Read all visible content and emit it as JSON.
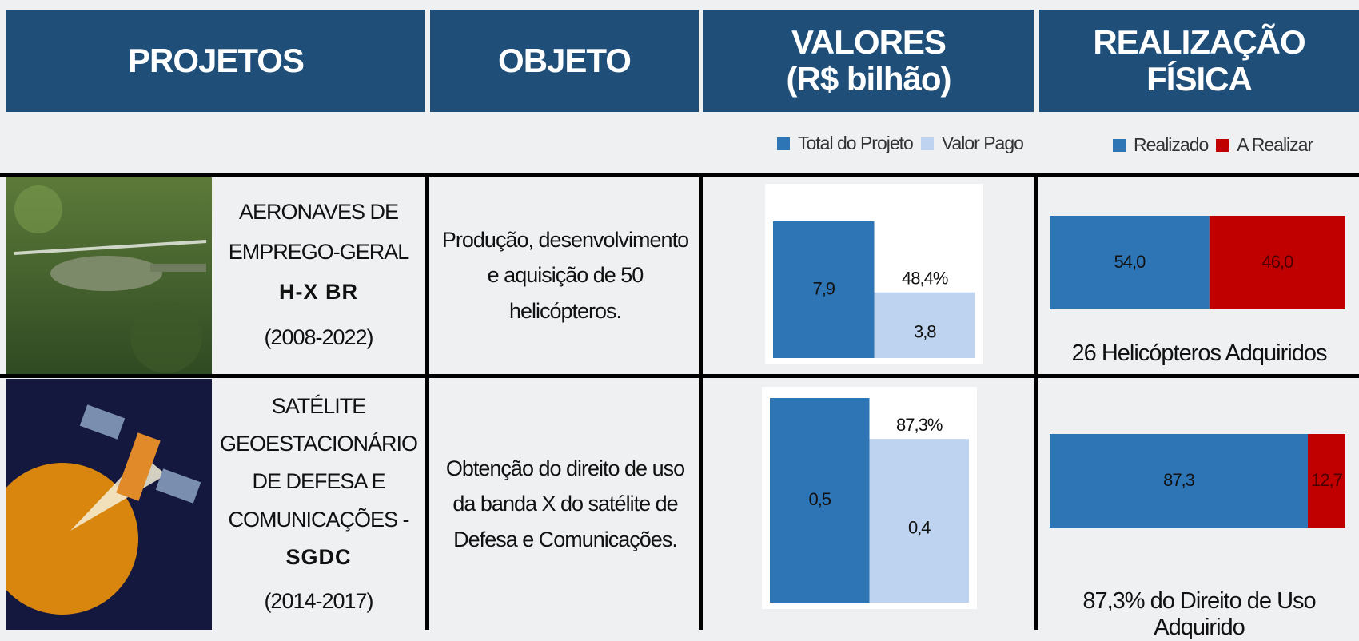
{
  "header": {
    "columns": [
      [
        "PROJETOS"
      ],
      [
        "OBJETO"
      ],
      [
        "VALORES",
        "(R$ bilhão)"
      ],
      [
        "REALIZAÇÃO FÍSICA"
      ]
    ]
  },
  "legends": {
    "valores": {
      "names": [
        "Total do Projeto",
        "Valor Pago"
      ],
      "colors": [
        "#2e75b6",
        "#bdd3f0"
      ]
    },
    "realizacao": {
      "names": [
        "Realizado",
        "A Realizar"
      ],
      "colors": [
        "#2e75b6",
        "#c00000"
      ]
    }
  },
  "rows": [
    {
      "name": [
        "AERONAVES DE",
        "EMPREGO-GERAL",
        "H-X BR"
      ],
      "period": "(2008-2022)",
      "object": "Produção, desenvolvimento e aquisição de 50 helicópteros.",
      "valores": {
        "values": [
          7.9,
          3.8
        ],
        "value_labels": [
          "7,9",
          "3,8"
        ],
        "percent": "48,4%"
      },
      "realizacao": {
        "values": [
          54.0,
          46.0
        ],
        "value_labels": [
          "54,0",
          "46,0"
        ],
        "caption": "26 Helicópteros Adquiridos"
      }
    },
    {
      "name": [
        "SATÉLITE",
        "GEOESTACIONÁRIO",
        "DE DEFESA E",
        "COMUNICAÇÕES -",
        "SGDC"
      ],
      "period": "(2014-2017)",
      "object": "Obtenção do direito de uso da banda X do satélite de Defesa e Comunicações.",
      "valores": {
        "values": [
          0.5,
          0.4
        ],
        "value_labels": [
          "0,5",
          "0,4"
        ],
        "percent": "87,3%"
      },
      "realizacao": {
        "values": [
          87.3,
          12.7
        ],
        "value_labels": [
          "87,3",
          "12,7"
        ],
        "caption": "87,3%  do Direito de Uso Adquirido"
      }
    }
  ]
}
